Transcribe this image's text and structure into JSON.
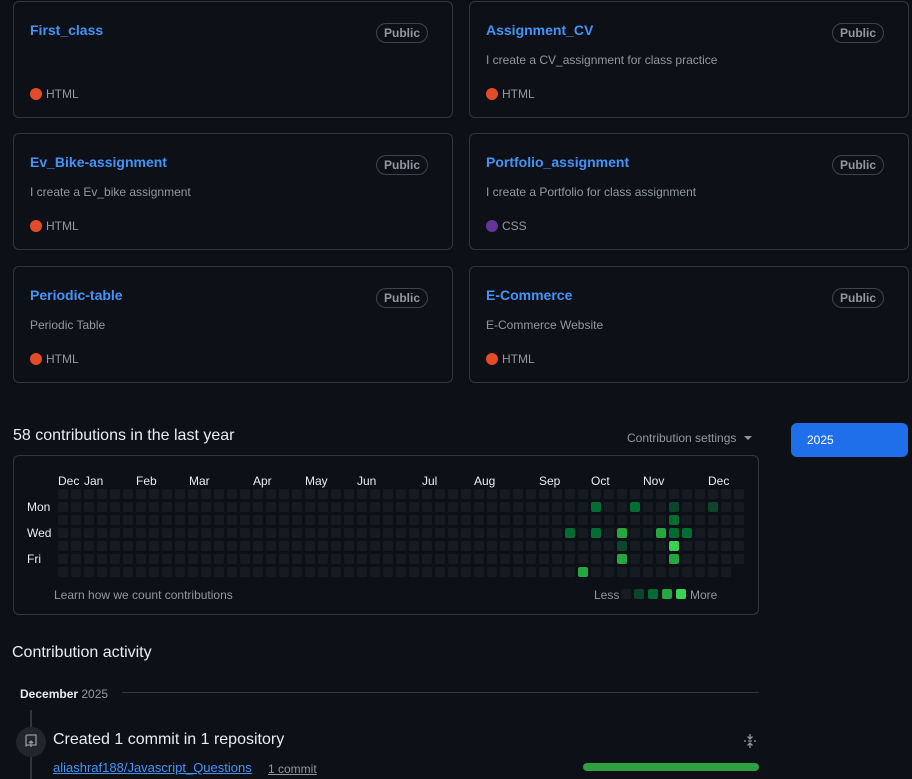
{
  "repos": [
    {
      "name": "First_class",
      "visibility": "Public",
      "description": "",
      "language": "HTML",
      "lang_color": "#e34c26"
    },
    {
      "name": "Assignment_CV",
      "visibility": "Public",
      "description": "I create a CV_assignment for class practice",
      "language": "HTML",
      "lang_color": "#e34c26"
    },
    {
      "name": "Ev_Bike-assignment",
      "visibility": "Public",
      "description": "I create a Ev_bike assignment",
      "language": "HTML",
      "lang_color": "#e34c26"
    },
    {
      "name": "Portfolio_assignment",
      "visibility": "Public",
      "description": "I create a Portfolio for class assignment",
      "language": "CSS",
      "lang_color": "#663399"
    },
    {
      "name": "Periodic-table",
      "visibility": "Public",
      "description": "Periodic Table",
      "language": "HTML",
      "lang_color": "#e34c26"
    },
    {
      "name": "E-Commerce",
      "visibility": "Public",
      "description": "E-Commerce Website",
      "language": "HTML",
      "lang_color": "#e34c26"
    }
  ],
  "contributions": {
    "title": "58 contributions in the last year",
    "settings_label": "Contribution settings",
    "year": "2025",
    "months": [
      "Dec",
      "Jan",
      "Feb",
      "Mar",
      "Apr",
      "May",
      "Jun",
      "Jul",
      "Aug",
      "Sep",
      "Oct",
      "Nov",
      "Dec"
    ],
    "days": [
      "Mon",
      "Wed",
      "Fri"
    ],
    "learn_link": "Learn how we count contributions",
    "legend_less": "Less",
    "legend_more": "More",
    "level_colors": [
      "#161b22",
      "#0e4429",
      "#006d32",
      "#26a641",
      "#39d353"
    ],
    "active_cells": [
      {
        "week": 41,
        "day": 1,
        "level": 2
      },
      {
        "week": 44,
        "day": 1,
        "level": 2
      },
      {
        "week": 47,
        "day": 1,
        "level": 1
      },
      {
        "week": 50,
        "day": 1,
        "level": 1
      },
      {
        "week": 47,
        "day": 2,
        "level": 2
      },
      {
        "week": 39,
        "day": 3,
        "level": 2
      },
      {
        "week": 41,
        "day": 3,
        "level": 2
      },
      {
        "week": 43,
        "day": 3,
        "level": 3
      },
      {
        "week": 46,
        "day": 3,
        "level": 3
      },
      {
        "week": 47,
        "day": 3,
        "level": 2
      },
      {
        "week": 48,
        "day": 3,
        "level": 2
      },
      {
        "week": 43,
        "day": 4,
        "level": 1
      },
      {
        "week": 47,
        "day": 4,
        "level": 4
      },
      {
        "week": 43,
        "day": 5,
        "level": 3
      },
      {
        "week": 47,
        "day": 5,
        "level": 3
      },
      {
        "week": 40,
        "day": 6,
        "level": 3
      },
      {
        "week": 37,
        "day": 7,
        "level": 2
      },
      {
        "week": 38,
        "day": 7,
        "level": 3
      },
      {
        "week": 43,
        "day": 7,
        "level": 3
      },
      {
        "week": 47,
        "day": 7,
        "level": 2
      }
    ]
  },
  "activity": {
    "title": "Contribution activity",
    "month": "December",
    "year": "2025",
    "heading": "Created 1 commit in 1 repository",
    "repo": "aliashraf188/Javascript_Questions",
    "commit_count": "1 commit",
    "progress": 1.0
  }
}
